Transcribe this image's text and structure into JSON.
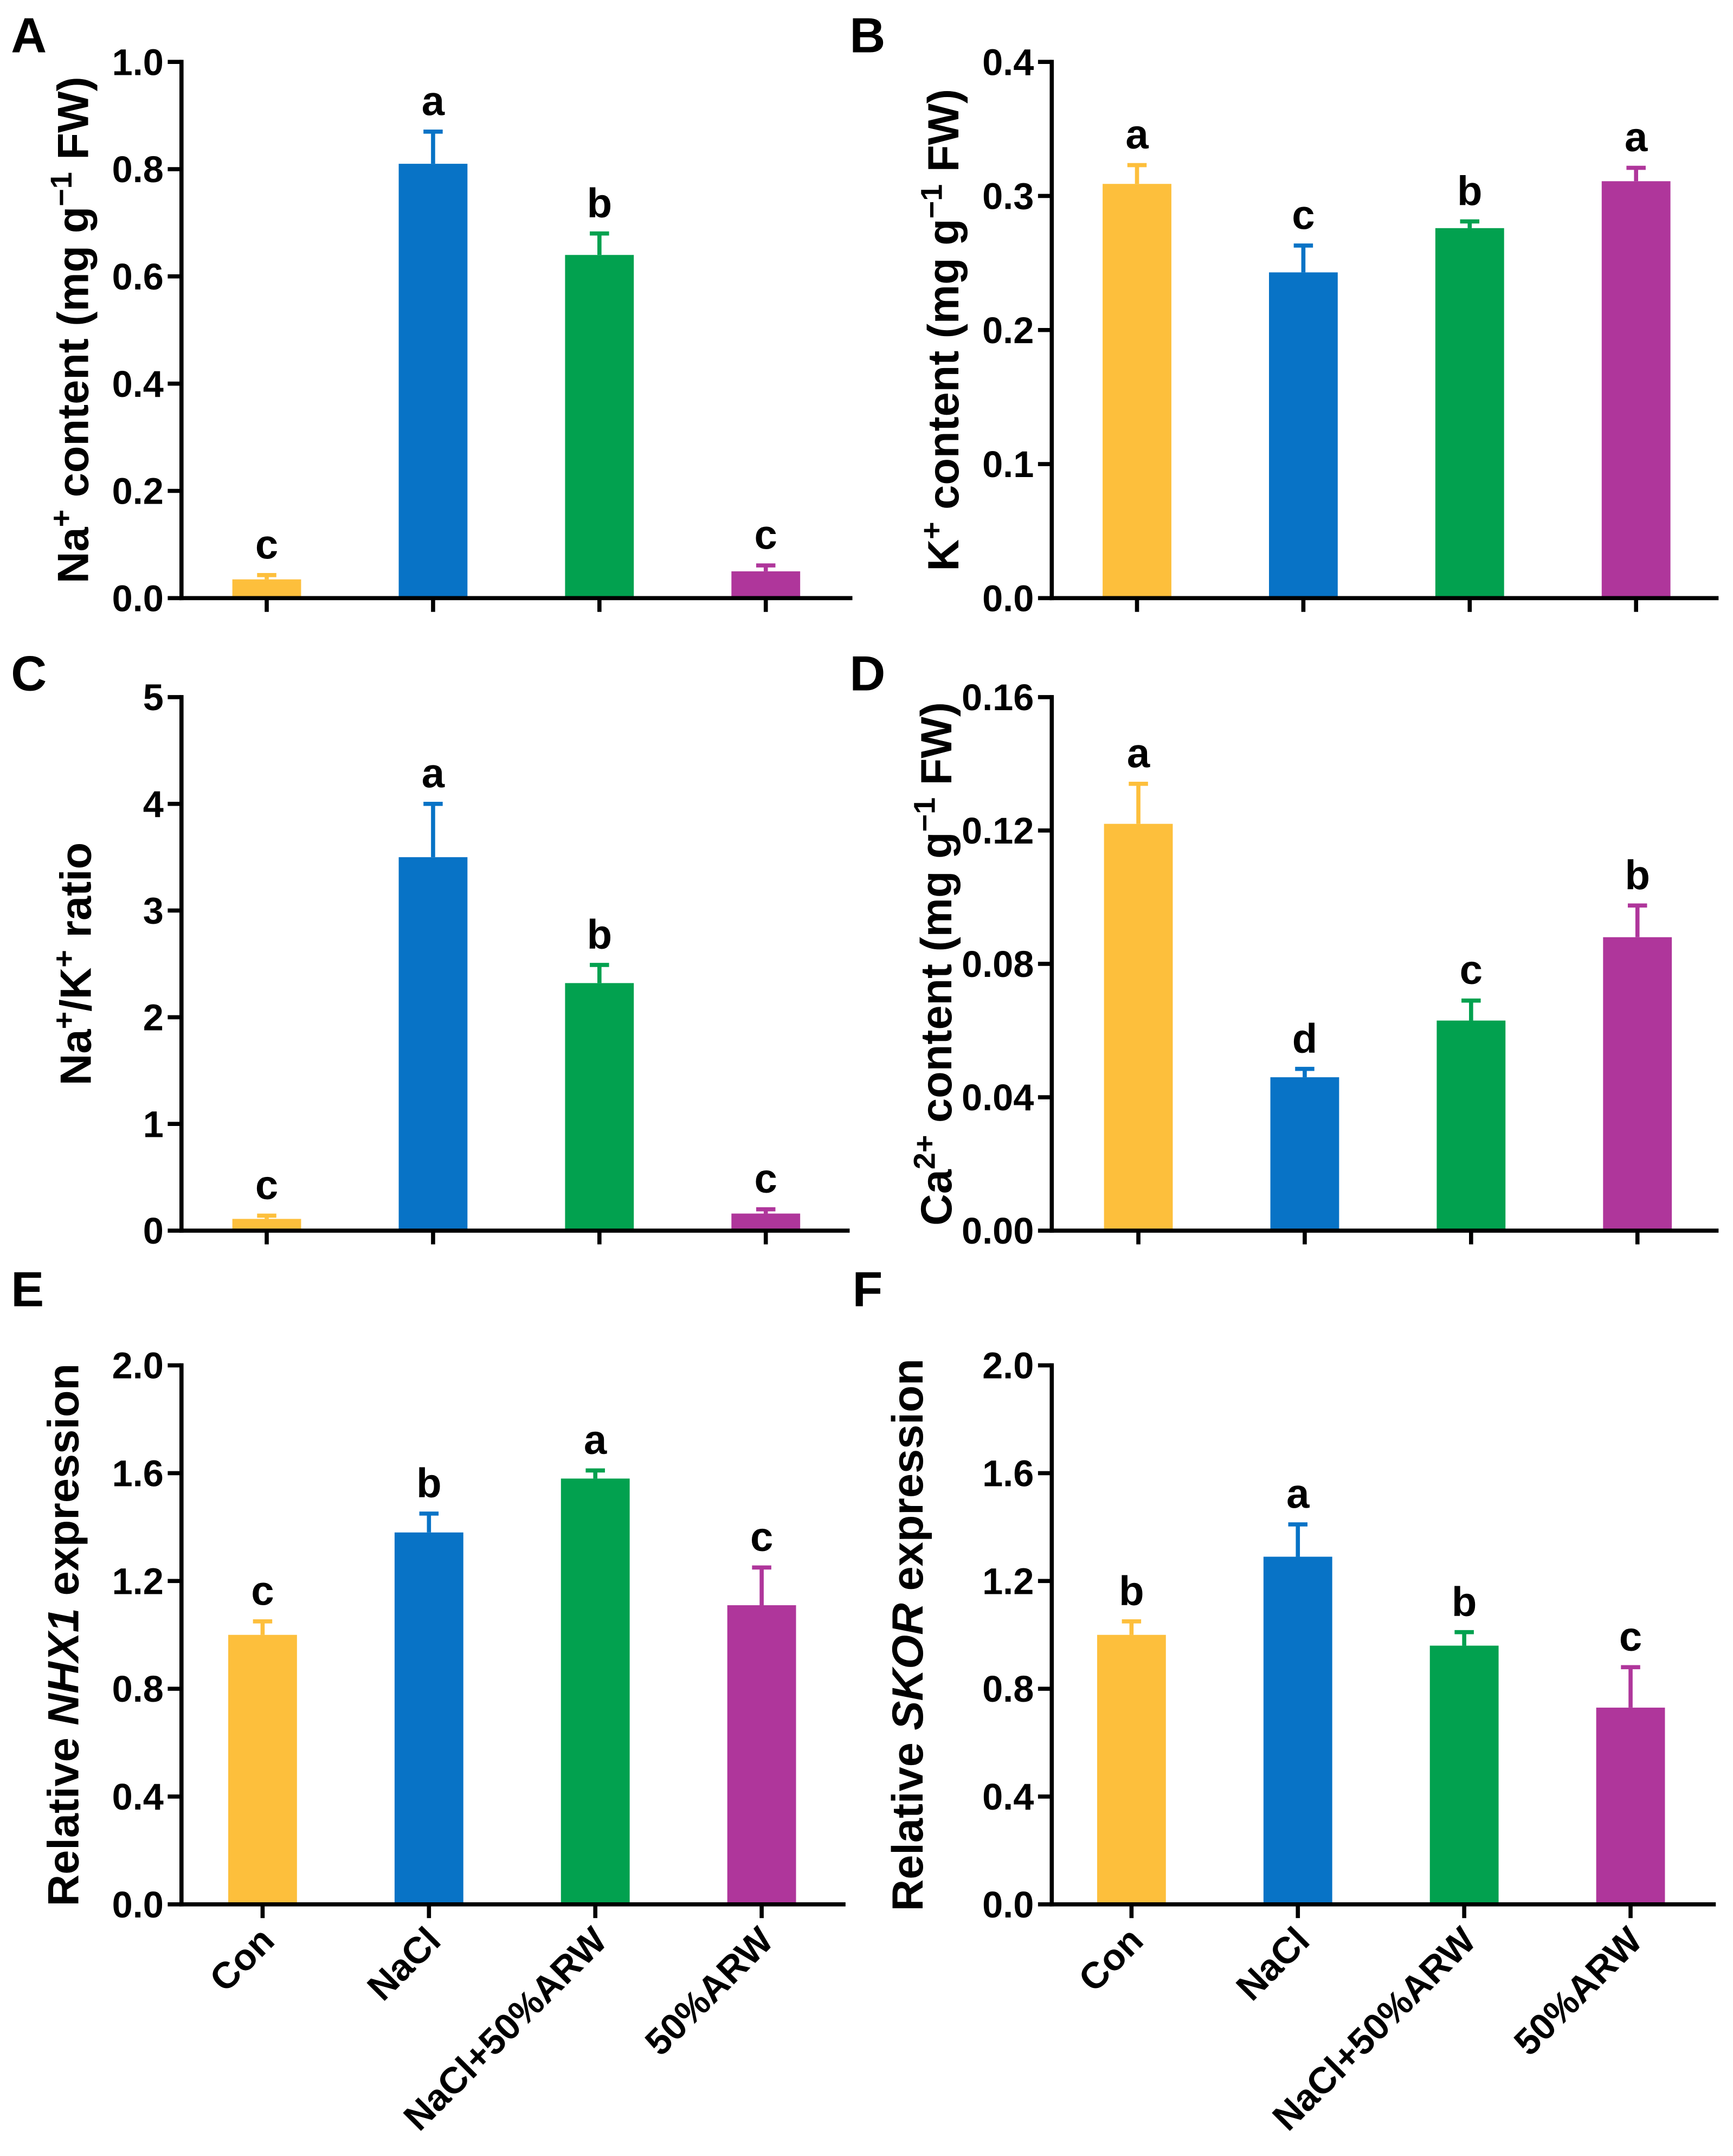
{
  "bar_colors": [
    "#FDBF3C",
    "#0873C6",
    "#02A14F",
    "#AF369B"
  ],
  "axis_color": "#000000",
  "chart_data": [
    {
      "panel": "A",
      "type": "bar",
      "ylabel": [
        {
          "text": "Na"
        },
        {
          "text": "+",
          "sup": true
        },
        {
          "text": " content (mg g"
        },
        {
          "text": "−1",
          "sup": true
        },
        {
          "text": " FW)"
        }
      ],
      "ylim": [
        0,
        1.0
      ],
      "yticks": [
        0,
        0.2,
        0.4,
        0.6,
        0.8,
        1.0
      ],
      "ytick_labels": [
        "0.0",
        "0.2",
        "0.4",
        "0.6",
        "0.8",
        "1.0"
      ],
      "values": [
        0.035,
        0.81,
        0.64,
        0.05
      ],
      "errors": [
        0.008,
        0.06,
        0.04,
        0.011
      ],
      "letters": [
        "c",
        "a",
        "b",
        "c"
      ]
    },
    {
      "panel": "B",
      "type": "bar",
      "ylabel": [
        {
          "text": "K"
        },
        {
          "text": "+",
          "sup": true
        },
        {
          "text": " content (mg g"
        },
        {
          "text": "−1",
          "sup": true
        },
        {
          "text": " FW)"
        }
      ],
      "ylim": [
        0,
        0.4
      ],
      "yticks": [
        0,
        0.1,
        0.2,
        0.3,
        0.4
      ],
      "ytick_labels": [
        "0.0",
        "0.1",
        "0.2",
        "0.3",
        "0.4"
      ],
      "values": [
        0.309,
        0.243,
        0.276,
        0.311
      ],
      "errors": [
        0.014,
        0.02,
        0.005,
        0.01
      ],
      "letters": [
        "a",
        "c",
        "b",
        "a"
      ]
    },
    {
      "panel": "C",
      "type": "bar",
      "ylabel": [
        {
          "text": "Na"
        },
        {
          "text": "+",
          "sup": true
        },
        {
          "text": "/K"
        },
        {
          "text": "+",
          "sup": true
        },
        {
          "text": " ratio"
        }
      ],
      "ylim": [
        0,
        5
      ],
      "yticks": [
        0,
        1,
        2,
        3,
        4,
        5
      ],
      "ytick_labels": [
        "0",
        "1",
        "2",
        "3",
        "4",
        "5"
      ],
      "values": [
        0.11,
        3.5,
        2.32,
        0.16
      ],
      "errors": [
        0.03,
        0.5,
        0.17,
        0.04
      ],
      "letters": [
        "c",
        "a",
        "b",
        "c"
      ]
    },
    {
      "panel": "D",
      "type": "bar",
      "ylabel": [
        {
          "text": "Ca"
        },
        {
          "text": "2+",
          "sup": true
        },
        {
          "text": " content (mg g"
        },
        {
          "text": "−1",
          "sup": true
        },
        {
          "text": " FW)"
        }
      ],
      "ylim": [
        0,
        0.16
      ],
      "yticks": [
        0,
        0.04,
        0.08,
        0.12,
        0.16
      ],
      "ytick_labels": [
        "0.00",
        "0.04",
        "0.08",
        "0.12",
        "0.16"
      ],
      "values": [
        0.122,
        0.046,
        0.063,
        0.088
      ],
      "errors": [
        0.012,
        0.0025,
        0.006,
        0.0095
      ],
      "letters": [
        "a",
        "d",
        "c",
        "b"
      ]
    },
    {
      "panel": "E",
      "type": "bar",
      "ylabel": [
        {
          "text": "Relative "
        },
        {
          "text": "NHX1",
          "italic": true
        },
        {
          "text": " expression"
        }
      ],
      "ylim": [
        0,
        2.0
      ],
      "yticks": [
        0,
        0.4,
        0.8,
        1.2,
        1.6,
        2.0
      ],
      "ytick_labels": [
        "0.0",
        "0.4",
        "0.8",
        "1.2",
        "1.6",
        "2.0"
      ],
      "categories": [
        "Con",
        "NaCl",
        "NaCl+50%ARW",
        "50%ARW"
      ],
      "values": [
        1.0,
        1.38,
        1.58,
        1.11
      ],
      "errors": [
        0.05,
        0.07,
        0.03,
        0.14
      ],
      "letters": [
        "c",
        "b",
        "a",
        "c"
      ]
    },
    {
      "panel": "F",
      "type": "bar",
      "ylabel": [
        {
          "text": "Relative "
        },
        {
          "text": "SKOR",
          "italic": true
        },
        {
          "text": " expression"
        }
      ],
      "ylim": [
        0,
        2.0
      ],
      "yticks": [
        0,
        0.4,
        0.8,
        1.2,
        1.6,
        2.0
      ],
      "ytick_labels": [
        "0.0",
        "0.4",
        "0.8",
        "1.2",
        "1.6",
        "2.0"
      ],
      "categories": [
        "Con",
        "NaCl",
        "NaCl+50%ARW",
        "50%ARW"
      ],
      "values": [
        1.0,
        1.29,
        0.96,
        0.73
      ],
      "errors": [
        0.05,
        0.12,
        0.05,
        0.15
      ],
      "letters": [
        "b",
        "a",
        "b",
        "c"
      ]
    }
  ]
}
